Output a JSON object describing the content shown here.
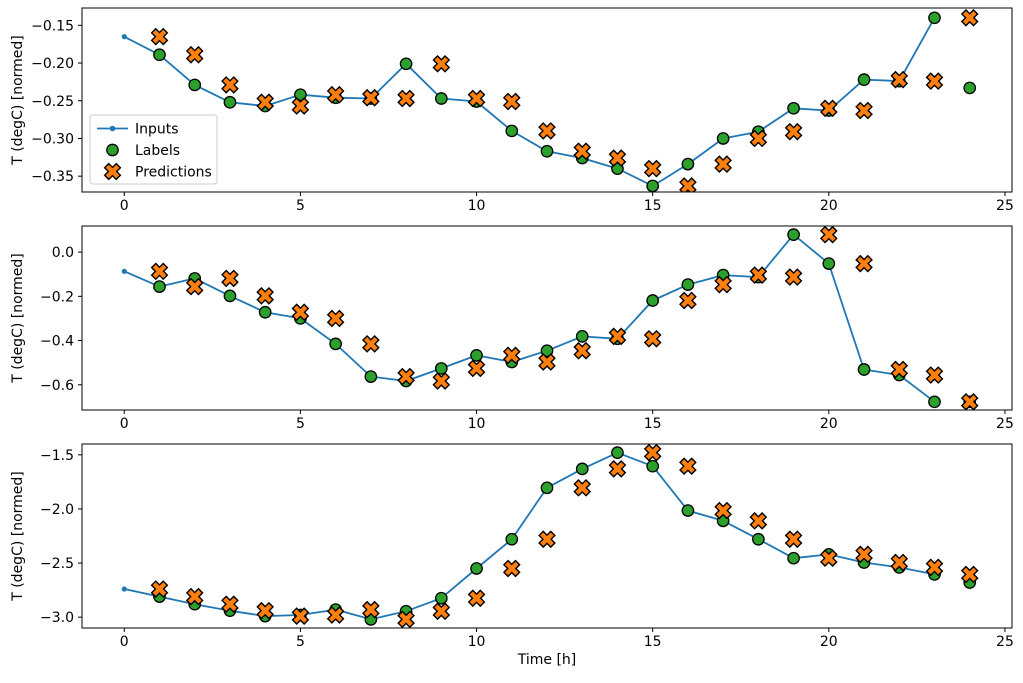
{
  "figure": {
    "xlabel": "Time [h]",
    "ylabel": "T (degC) [normed]",
    "legend_items": [
      {
        "label": "Inputs",
        "icon": "line-dot-icon"
      },
      {
        "label": "Labels",
        "icon": "circle-marker-icon"
      },
      {
        "label": "Predictions",
        "icon": "x-marker-icon"
      }
    ],
    "colors": {
      "inputs": "#1f77b4",
      "labels": "#2ca02c",
      "predictions": "#ff7f0e",
      "marker_edge": "#000000",
      "legend_border": "#cccccc",
      "legend_bg": "rgba(255,255,255,0.85)",
      "spine": "#000000",
      "background": "#ffffff"
    }
  },
  "chart_data": [
    {
      "type": "line",
      "ylabel": "T (degC) [normed]",
      "xlim": [
        -1.2,
        25.2
      ],
      "ylim": [
        -0.371,
        -0.127
      ],
      "xticks": [
        0,
        5,
        10,
        15,
        20,
        25
      ],
      "xtick_labels": [
        "0",
        "5",
        "10",
        "15",
        "20",
        "25"
      ],
      "yticks": [
        -0.15,
        -0.2,
        -0.25,
        -0.3,
        -0.35
      ],
      "ytick_labels": [
        "−0.15",
        "−0.20",
        "−0.25",
        "−0.30",
        "−0.35"
      ],
      "legend_position": "left-middle",
      "grid": false,
      "series": [
        {
          "name": "Inputs",
          "style": "line+dot",
          "x": [
            0,
            1,
            2,
            3,
            4,
            5,
            6,
            7,
            8,
            9,
            10,
            11,
            12,
            13,
            14,
            15,
            16,
            17,
            18,
            19,
            20,
            21,
            22,
            23
          ],
          "y": [
            -0.165,
            -0.189,
            -0.229,
            -0.252,
            -0.257,
            -0.242,
            -0.246,
            -0.247,
            -0.201,
            -0.247,
            -0.251,
            -0.29,
            -0.317,
            -0.326,
            -0.34,
            -0.363,
            -0.334,
            -0.3,
            -0.291,
            -0.26,
            -0.263,
            -0.222,
            -0.224,
            -0.14
          ]
        },
        {
          "name": "Labels",
          "style": "scatter-circle",
          "x": [
            1,
            2,
            3,
            4,
            5,
            6,
            7,
            8,
            9,
            10,
            11,
            12,
            13,
            14,
            15,
            16,
            17,
            18,
            19,
            20,
            21,
            22,
            23,
            24
          ],
          "y": [
            -0.189,
            -0.229,
            -0.252,
            -0.257,
            -0.242,
            -0.246,
            -0.247,
            -0.201,
            -0.247,
            -0.251,
            -0.29,
            -0.317,
            -0.326,
            -0.34,
            -0.363,
            -0.334,
            -0.3,
            -0.291,
            -0.26,
            -0.263,
            -0.222,
            -0.224,
            -0.14,
            -0.233
          ]
        },
        {
          "name": "Predictions",
          "style": "scatter-x",
          "x": [
            1,
            2,
            3,
            4,
            5,
            6,
            7,
            8,
            9,
            10,
            11,
            12,
            13,
            14,
            15,
            16,
            17,
            18,
            19,
            20,
            21,
            22,
            23,
            24
          ],
          "y": [
            -0.165,
            -0.189,
            -0.229,
            -0.252,
            -0.257,
            -0.242,
            -0.246,
            -0.247,
            -0.201,
            -0.247,
            -0.251,
            -0.29,
            -0.317,
            -0.326,
            -0.34,
            -0.363,
            -0.334,
            -0.3,
            -0.291,
            -0.26,
            -0.263,
            -0.222,
            -0.224,
            -0.14
          ]
        }
      ]
    },
    {
      "type": "line",
      "ylabel": "T (degC) [normed]",
      "xlim": [
        -1.2,
        25.2
      ],
      "ylim": [
        -0.714,
        0.118
      ],
      "xticks": [
        0,
        5,
        10,
        15,
        20,
        25
      ],
      "xtick_labels": [
        "0",
        "5",
        "10",
        "15",
        "20",
        "25"
      ],
      "yticks": [
        0.0,
        -0.2,
        -0.4,
        -0.6
      ],
      "ytick_labels": [
        "0.0",
        "−0.2",
        "−0.4",
        "−0.6"
      ],
      "legend_position": "none",
      "grid": false,
      "series": [
        {
          "name": "Inputs",
          "style": "line+dot",
          "x": [
            0,
            1,
            2,
            3,
            4,
            5,
            6,
            7,
            8,
            9,
            10,
            11,
            12,
            13,
            14,
            15,
            16,
            17,
            18,
            19,
            20,
            21,
            22,
            23
          ],
          "y": [
            -0.087,
            -0.156,
            -0.119,
            -0.198,
            -0.272,
            -0.3,
            -0.415,
            -0.563,
            -0.583,
            -0.526,
            -0.467,
            -0.497,
            -0.446,
            -0.381,
            -0.392,
            -0.219,
            -0.147,
            -0.104,
            -0.113,
            0.079,
            -0.052,
            -0.531,
            -0.556,
            -0.677
          ]
        },
        {
          "name": "Labels",
          "style": "scatter-circle",
          "x": [
            1,
            2,
            3,
            4,
            5,
            6,
            7,
            8,
            9,
            10,
            11,
            12,
            13,
            14,
            15,
            16,
            17,
            18,
            19,
            20,
            21,
            22,
            23,
            24
          ],
          "y": [
            -0.156,
            -0.119,
            -0.198,
            -0.272,
            -0.3,
            -0.415,
            -0.563,
            -0.583,
            -0.526,
            -0.467,
            -0.497,
            -0.446,
            -0.381,
            -0.392,
            -0.219,
            -0.147,
            -0.104,
            -0.113,
            0.079,
            -0.052,
            -0.531,
            -0.556,
            -0.677,
            -0.677
          ]
        },
        {
          "name": "Predictions",
          "style": "scatter-x",
          "x": [
            1,
            2,
            3,
            4,
            5,
            6,
            7,
            8,
            9,
            10,
            11,
            12,
            13,
            14,
            15,
            16,
            17,
            18,
            19,
            20,
            21,
            22,
            23,
            24
          ],
          "y": [
            -0.087,
            -0.156,
            -0.119,
            -0.198,
            -0.272,
            -0.3,
            -0.415,
            -0.563,
            -0.583,
            -0.526,
            -0.467,
            -0.497,
            -0.446,
            -0.381,
            -0.392,
            -0.219,
            -0.147,
            -0.104,
            -0.113,
            0.079,
            -0.052,
            -0.531,
            -0.556,
            -0.677
          ]
        }
      ]
    },
    {
      "type": "line",
      "ylabel": "T (degC) [normed]",
      "xlabel": "Time [h]",
      "xlim": [
        -1.2,
        25.2
      ],
      "ylim": [
        -3.1,
        -1.4
      ],
      "xticks": [
        0,
        5,
        10,
        15,
        20,
        25
      ],
      "xtick_labels": [
        "0",
        "5",
        "10",
        "15",
        "20",
        "25"
      ],
      "yticks": [
        -1.5,
        -2.0,
        -2.5,
        -3.0
      ],
      "ytick_labels": [
        "−1.5",
        "−2.0",
        "−2.5",
        "−3.0"
      ],
      "legend_position": "none",
      "grid": false,
      "series": [
        {
          "name": "Inputs",
          "style": "line+dot",
          "x": [
            0,
            1,
            2,
            3,
            4,
            5,
            6,
            7,
            8,
            9,
            10,
            11,
            12,
            13,
            14,
            15,
            16,
            17,
            18,
            19,
            20,
            21,
            22,
            23
          ],
          "y": [
            -2.74,
            -2.81,
            -2.88,
            -2.94,
            -2.99,
            -2.98,
            -2.93,
            -3.02,
            -2.945,
            -2.825,
            -2.55,
            -2.28,
            -1.805,
            -1.63,
            -1.48,
            -1.605,
            -2.015,
            -2.11,
            -2.28,
            -2.455,
            -2.42,
            -2.495,
            -2.54,
            -2.605
          ]
        },
        {
          "name": "Labels",
          "style": "scatter-circle",
          "x": [
            1,
            2,
            3,
            4,
            5,
            6,
            7,
            8,
            9,
            10,
            11,
            12,
            13,
            14,
            15,
            16,
            17,
            18,
            19,
            20,
            21,
            22,
            23,
            24
          ],
          "y": [
            -2.81,
            -2.88,
            -2.94,
            -2.99,
            -2.98,
            -2.93,
            -3.02,
            -2.945,
            -2.825,
            -2.55,
            -2.28,
            -1.805,
            -1.63,
            -1.48,
            -1.605,
            -2.015,
            -2.11,
            -2.28,
            -2.455,
            -2.42,
            -2.495,
            -2.54,
            -2.605,
            -2.68
          ]
        },
        {
          "name": "Predictions",
          "style": "scatter-x",
          "x": [
            1,
            2,
            3,
            4,
            5,
            6,
            7,
            8,
            9,
            10,
            11,
            12,
            13,
            14,
            15,
            16,
            17,
            18,
            19,
            20,
            21,
            22,
            23,
            24
          ],
          "y": [
            -2.74,
            -2.81,
            -2.88,
            -2.94,
            -2.99,
            -2.98,
            -2.93,
            -3.02,
            -2.945,
            -2.825,
            -2.55,
            -2.28,
            -1.805,
            -1.63,
            -1.48,
            -1.605,
            -2.015,
            -2.11,
            -2.28,
            -2.455,
            -2.42,
            -2.495,
            -2.54,
            -2.605
          ]
        }
      ]
    }
  ]
}
